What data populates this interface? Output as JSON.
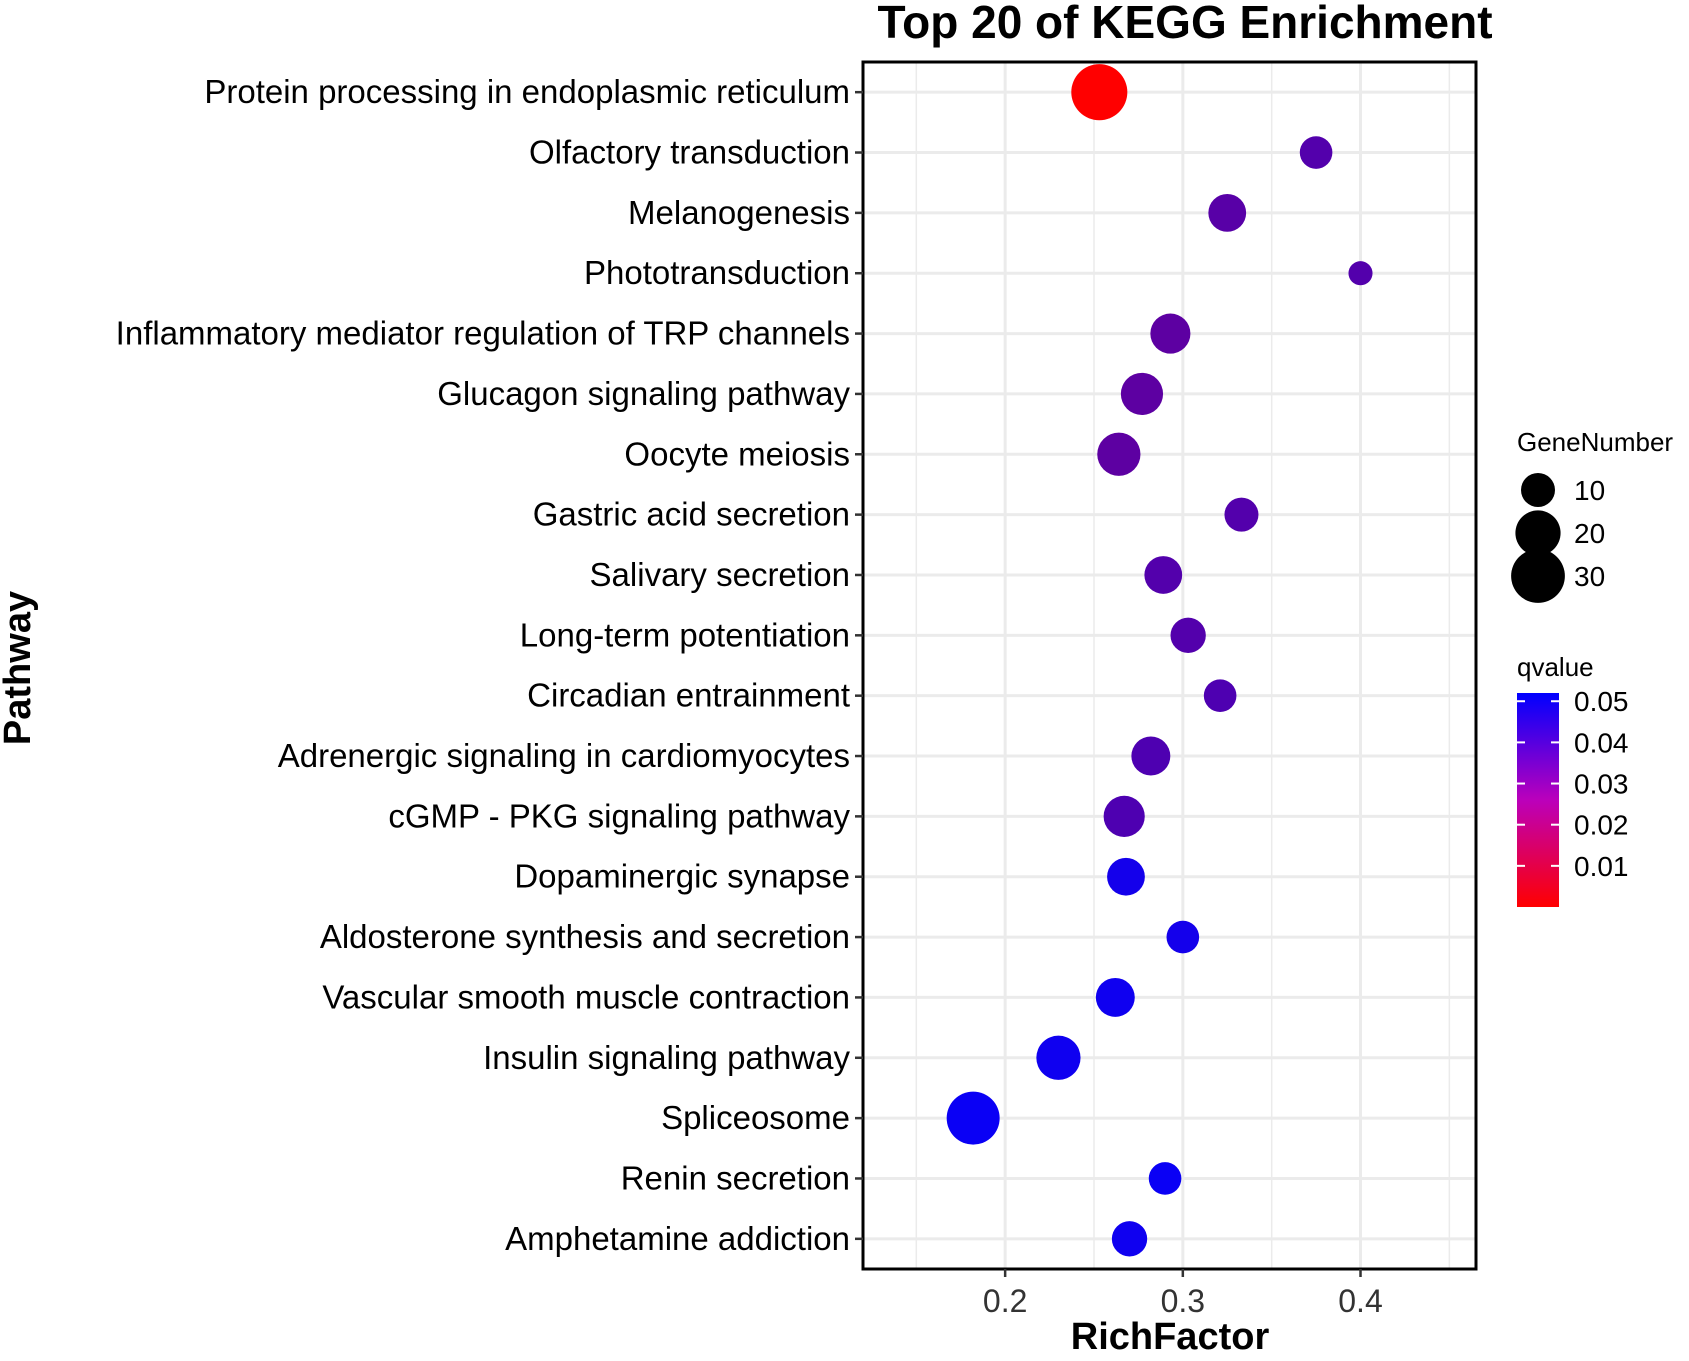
{
  "chart_data": {
    "type": "scatter",
    "title": "Top 20 of KEGG Enrichment",
    "xlabel": "RichFactor",
    "ylabel": "Pathway",
    "xlim": [
      0.12,
      0.465
    ],
    "xticks": [
      0.2,
      0.3,
      0.4
    ],
    "xtick_labels": [
      "0.2",
      "0.3",
      "0.4"
    ],
    "grid": true,
    "legend_position": "right",
    "colors": {
      "low": "#ff0000",
      "high": "#0000ff"
    },
    "points": [
      {
        "pathway": "Protein processing in endoplasmic reticulum",
        "rich_factor": 0.253,
        "gene_number": 33,
        "qvalue": 0.0
      },
      {
        "pathway": "Olfactory transduction",
        "rich_factor": 0.375,
        "gene_number": 9,
        "qvalue": 0.035
      },
      {
        "pathway": "Melanogenesis",
        "rich_factor": 0.325,
        "gene_number": 13,
        "qvalue": 0.034
      },
      {
        "pathway": "Phototransduction",
        "rich_factor": 0.4,
        "gene_number": 4,
        "qvalue": 0.035
      },
      {
        "pathway": "Inflammatory mediator regulation of TRP channels",
        "rich_factor": 0.293,
        "gene_number": 15,
        "qvalue": 0.033
      },
      {
        "pathway": "Glucagon signaling pathway",
        "rich_factor": 0.277,
        "gene_number": 17,
        "qvalue": 0.033
      },
      {
        "pathway": "Oocyte meiosis",
        "rich_factor": 0.264,
        "gene_number": 18,
        "qvalue": 0.033
      },
      {
        "pathway": "Gastric acid secretion",
        "rich_factor": 0.333,
        "gene_number": 10,
        "qvalue": 0.035
      },
      {
        "pathway": "Salivary secretion",
        "rich_factor": 0.289,
        "gene_number": 13,
        "qvalue": 0.035
      },
      {
        "pathway": "Long-term potentiation",
        "rich_factor": 0.303,
        "gene_number": 11,
        "qvalue": 0.035
      },
      {
        "pathway": "Circadian entrainment",
        "rich_factor": 0.321,
        "gene_number": 9,
        "qvalue": 0.036
      },
      {
        "pathway": "Adrenergic signaling in cardiomyocytes",
        "rich_factor": 0.282,
        "gene_number": 14,
        "qvalue": 0.036
      },
      {
        "pathway": "cGMP - PKG signaling pathway",
        "rich_factor": 0.267,
        "gene_number": 16,
        "qvalue": 0.036
      },
      {
        "pathway": "Dopaminergic synapse",
        "rich_factor": 0.268,
        "gene_number": 13,
        "qvalue": 0.048
      },
      {
        "pathway": "Aldosterone synthesis and secretion",
        "rich_factor": 0.3,
        "gene_number": 9,
        "qvalue": 0.048
      },
      {
        "pathway": "Vascular smooth muscle contraction",
        "rich_factor": 0.262,
        "gene_number": 14,
        "qvalue": 0.049
      },
      {
        "pathway": "Insulin signaling pathway",
        "rich_factor": 0.23,
        "gene_number": 19,
        "qvalue": 0.049
      },
      {
        "pathway": "Spliceosome",
        "rich_factor": 0.182,
        "gene_number": 29,
        "qvalue": 0.05
      },
      {
        "pathway": "Renin secretion",
        "rich_factor": 0.29,
        "gene_number": 9,
        "qvalue": 0.05
      },
      {
        "pathway": "Amphetamine addiction",
        "rich_factor": 0.27,
        "gene_number": 11,
        "qvalue": 0.049
      }
    ],
    "size_legend": {
      "title": "GeneNumber",
      "entries": [
        {
          "value": 10,
          "label": "10"
        },
        {
          "value": 20,
          "label": "20"
        },
        {
          "value": 30,
          "label": "30"
        }
      ]
    },
    "color_legend": {
      "title": "qvalue",
      "range": [
        0.0,
        0.052
      ],
      "ticks": [
        {
          "value": 0.05,
          "label": "0.05"
        },
        {
          "value": 0.04,
          "label": "0.04"
        },
        {
          "value": 0.03,
          "label": "0.03"
        },
        {
          "value": 0.02,
          "label": "0.02"
        },
        {
          "value": 0.01,
          "label": "0.01"
        }
      ]
    }
  }
}
